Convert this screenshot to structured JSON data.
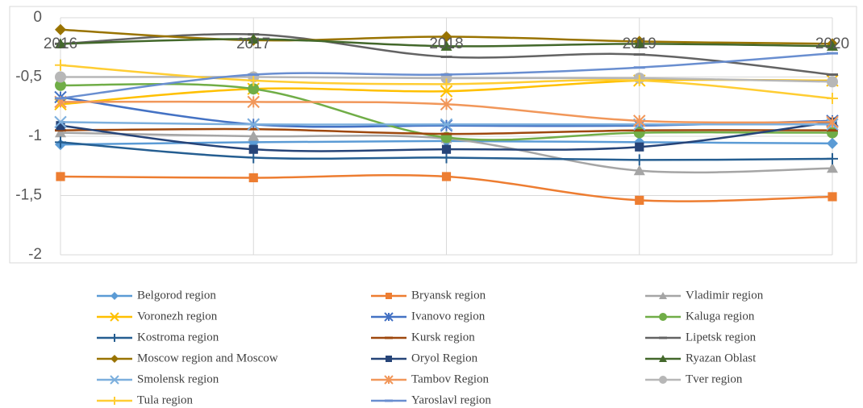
{
  "chart_data": {
    "type": "line",
    "categories": [
      "2016",
      "2017",
      "2018",
      "2019",
      "2020"
    ],
    "ylim": [
      -2,
      0
    ],
    "yticks": [
      0,
      {
        "value": -0.5,
        "label": "-0,5"
      },
      -1,
      {
        "value": -1.5,
        "label": "-1,5"
      },
      -2
    ],
    "grid": true,
    "legend": "bottom",
    "series": [
      {
        "name": "Belgorod region",
        "color": "#5b9bd5",
        "marker": "diamond",
        "values": [
          -1.07,
          -1.05,
          -1.04,
          -1.05,
          -1.06
        ]
      },
      {
        "name": "Bryansk region",
        "color": "#ed7d31",
        "marker": "square",
        "values": [
          -1.34,
          -1.35,
          -1.34,
          -1.54,
          -1.51
        ]
      },
      {
        "name": "Vladimir region",
        "color": "#a5a5a5",
        "marker": "triangle",
        "values": [
          -0.97,
          -1.0,
          -1.02,
          -1.29,
          -1.27
        ]
      },
      {
        "name": "Voronezh region",
        "color": "#ffc000",
        "marker": "x",
        "values": [
          -0.73,
          -0.6,
          -0.62,
          -0.53,
          -0.53
        ]
      },
      {
        "name": "Ivanovo region",
        "color": "#4472c4",
        "marker": "star",
        "values": [
          -0.67,
          -0.9,
          -0.91,
          -0.91,
          -0.87
        ]
      },
      {
        "name": "Kaluga region",
        "color": "#70ad47",
        "marker": "circle",
        "values": [
          -0.57,
          -0.6,
          -1.01,
          -0.97,
          -0.97
        ]
      },
      {
        "name": "Kostroma region",
        "color": "#255e91",
        "marker": "plus",
        "values": [
          -1.05,
          -1.18,
          -1.18,
          -1.2,
          -1.19
        ]
      },
      {
        "name": "Kursk region",
        "color": "#9e480e",
        "marker": "dash",
        "values": [
          -0.95,
          -0.94,
          -0.98,
          -0.95,
          -0.95
        ]
      },
      {
        "name": "Lipetsk region",
        "color": "#636363",
        "marker": "dash",
        "values": [
          -0.22,
          -0.14,
          -0.33,
          -0.31,
          -0.48
        ]
      },
      {
        "name": "Moscow region and Moscow",
        "color": "#997300",
        "marker": "diamond",
        "values": [
          -0.1,
          -0.19,
          -0.16,
          -0.2,
          -0.22
        ]
      },
      {
        "name": "Oryol Region",
        "color": "#264478",
        "marker": "square",
        "values": [
          -0.91,
          -1.11,
          -1.11,
          -1.09,
          -0.88
        ]
      },
      {
        "name": "Ryazan Oblast",
        "color": "#43682b",
        "marker": "triangle",
        "values": [
          -0.22,
          -0.18,
          -0.24,
          -0.22,
          -0.24
        ]
      },
      {
        "name": "Smolensk region",
        "color": "#7cafdd",
        "marker": "x",
        "values": [
          -0.88,
          -0.9,
          -0.9,
          -0.9,
          -0.9
        ]
      },
      {
        "name": "Tambov Region",
        "color": "#f1975a",
        "marker": "star",
        "values": [
          -0.71,
          -0.71,
          -0.73,
          -0.87,
          -0.88
        ]
      },
      {
        "name": "Tver region",
        "color": "#b7b7b7",
        "marker": "circle",
        "values": [
          -0.5,
          -0.5,
          -0.51,
          -0.51,
          -0.54
        ]
      },
      {
        "name": "Tula region",
        "color": "#ffcd33",
        "marker": "plus",
        "values": [
          -0.4,
          -0.53,
          -0.56,
          -0.53,
          -0.68
        ]
      },
      {
        "name": "Yaroslavl region",
        "color": "#698ed0",
        "marker": "dash",
        "values": [
          -0.68,
          -0.48,
          -0.48,
          -0.42,
          -0.3
        ]
      }
    ]
  }
}
